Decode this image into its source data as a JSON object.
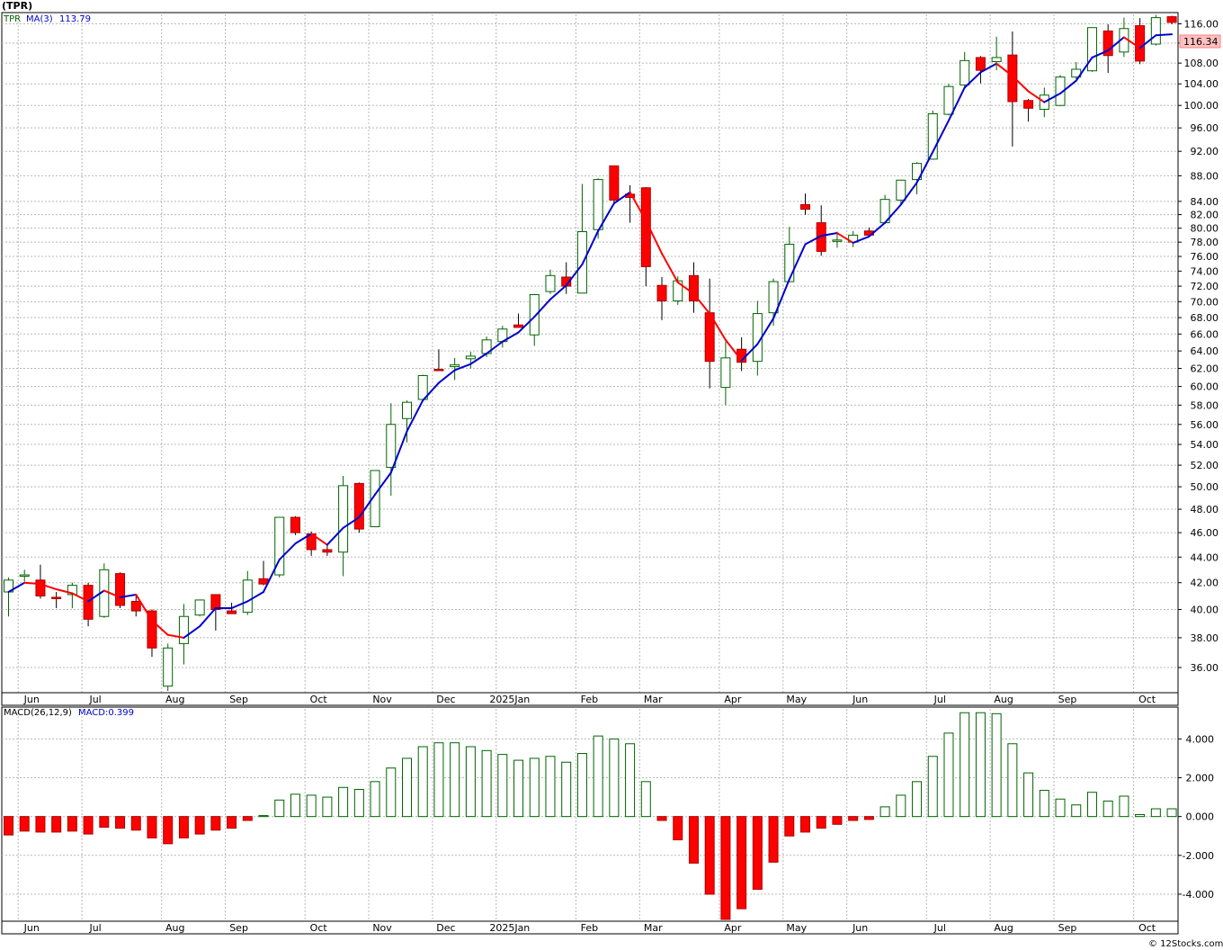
{
  "title": "(TPR)",
  "legend": {
    "symbol": "TPR",
    "ma_label": "MA(3)",
    "ma_value": "113.79",
    "macd_label": "MACD(26,12,9)",
    "macd_value_label": "MACD:0.399"
  },
  "last_price_label": "116.34",
  "copyright": "© 12Stocks.com",
  "colors": {
    "up": "#ffffff",
    "up_stroke": "#006400",
    "down": "#ff0000",
    "down_stroke": "#aa0000",
    "ma_up": "#0000cc",
    "ma_down": "#ff0000",
    "macd_pos": "#006400",
    "macd_neg": "#ff0000"
  },
  "chart_data": [
    {
      "type": "candlestick",
      "frequency": "weekly",
      "y_scale": "log",
      "ylim": [
        34.5,
        118
      ],
      "y_ticks": [
        36,
        38,
        40,
        42,
        44,
        46,
        48,
        50,
        52,
        54,
        56,
        58,
        60,
        62,
        64,
        66,
        68,
        70,
        72,
        74,
        76,
        78,
        80,
        82,
        84,
        88,
        92,
        96,
        100,
        104,
        108,
        112,
        116
      ],
      "y_tick_labels": [
        "36.00",
        "38.00",
        "40.00",
        "42.00",
        "44.00",
        "46.00",
        "48.00",
        "50.00",
        "52.00",
        "54.00",
        "56.00",
        "58.00",
        "60.00",
        "62.00",
        "64.00",
        "66.00",
        "68.00",
        "70.00",
        "72.00",
        "74.00",
        "76.00",
        "78.00",
        "80.00",
        "82.00",
        "84.00",
        "88.00",
        "92.00",
        "96.00",
        "100.00",
        "104.00",
        "108.00",
        "112.00",
        "116.00"
      ],
      "x_labels": [
        {
          "label": "Jun",
          "week": 1
        },
        {
          "label": "Jul",
          "week": 5
        },
        {
          "label": "Aug",
          "week": 10
        },
        {
          "label": "Sep",
          "week": 14
        },
        {
          "label": "Oct",
          "week": 19
        },
        {
          "label": "Nov",
          "week": 23
        },
        {
          "label": "Dec",
          "week": 27
        },
        {
          "label": "2025Jan",
          "week": 31
        },
        {
          "label": "Feb",
          "week": 36
        },
        {
          "label": "Mar",
          "week": 40
        },
        {
          "label": "Apr",
          "week": 45
        },
        {
          "label": "May",
          "week": 49
        },
        {
          "label": "Jun",
          "week": 53
        },
        {
          "label": "Jul",
          "week": 58
        },
        {
          "label": "Aug",
          "week": 62
        },
        {
          "label": "Sep",
          "week": 66
        },
        {
          "label": "Oct",
          "week": 71
        }
      ],
      "candles": [
        {
          "o": 41.3,
          "h": 42.4,
          "l": 39.5,
          "c": 42.2
        },
        {
          "o": 42.5,
          "h": 43.0,
          "l": 42.1,
          "c": 42.6
        },
        {
          "o": 42.2,
          "h": 43.4,
          "l": 40.8,
          "c": 41.0
        },
        {
          "o": 40.9,
          "h": 41.3,
          "l": 40.1,
          "c": 40.8
        },
        {
          "o": 41.1,
          "h": 42.0,
          "l": 40.1,
          "c": 41.8
        },
        {
          "o": 41.8,
          "h": 42.0,
          "l": 38.8,
          "c": 39.3
        },
        {
          "o": 39.5,
          "h": 43.5,
          "l": 39.4,
          "c": 43.0
        },
        {
          "o": 42.7,
          "h": 42.8,
          "l": 40.1,
          "c": 40.3
        },
        {
          "o": 40.6,
          "h": 41.0,
          "l": 39.5,
          "c": 39.9
        },
        {
          "o": 39.9,
          "h": 40.0,
          "l": 36.7,
          "c": 37.3
        },
        {
          "o": 34.8,
          "h": 37.6,
          "l": 34.5,
          "c": 37.3
        },
        {
          "o": 37.6,
          "h": 40.4,
          "l": 36.2,
          "c": 39.5
        },
        {
          "o": 39.6,
          "h": 40.7,
          "l": 39.5,
          "c": 40.7
        },
        {
          "o": 41.1,
          "h": 41.1,
          "l": 38.5,
          "c": 40.0
        },
        {
          "o": 39.9,
          "h": 40.5,
          "l": 39.7,
          "c": 39.7
        },
        {
          "o": 39.8,
          "h": 42.9,
          "l": 39.6,
          "c": 42.2
        },
        {
          "o": 42.3,
          "h": 43.7,
          "l": 41.8,
          "c": 41.9
        },
        {
          "o": 42.6,
          "h": 47.3,
          "l": 42.4,
          "c": 47.3
        },
        {
          "o": 47.3,
          "h": 47.4,
          "l": 45.8,
          "c": 46.0
        },
        {
          "o": 45.9,
          "h": 46.1,
          "l": 44.1,
          "c": 44.6
        },
        {
          "o": 44.6,
          "h": 45.0,
          "l": 44.1,
          "c": 44.4
        },
        {
          "o": 44.4,
          "h": 51.0,
          "l": 42.5,
          "c": 50.1
        },
        {
          "o": 50.3,
          "h": 50.4,
          "l": 46.0,
          "c": 46.3
        },
        {
          "o": 46.5,
          "h": 51.5,
          "l": 46.5,
          "c": 51.5
        },
        {
          "o": 51.8,
          "h": 58.2,
          "l": 49.2,
          "c": 56.0
        },
        {
          "o": 56.6,
          "h": 58.5,
          "l": 54.2,
          "c": 58.3
        },
        {
          "o": 58.6,
          "h": 61.3,
          "l": 58.4,
          "c": 61.2
        },
        {
          "o": 61.9,
          "h": 64.2,
          "l": 61.7,
          "c": 61.8
        },
        {
          "o": 62.2,
          "h": 63.2,
          "l": 60.7,
          "c": 62.4
        },
        {
          "o": 63.1,
          "h": 63.9,
          "l": 62.0,
          "c": 63.4
        },
        {
          "o": 63.7,
          "h": 65.7,
          "l": 63.3,
          "c": 65.3
        },
        {
          "o": 65.1,
          "h": 67.0,
          "l": 64.4,
          "c": 66.6
        },
        {
          "o": 67.1,
          "h": 68.5,
          "l": 66.9,
          "c": 66.8
        },
        {
          "o": 65.9,
          "h": 71.0,
          "l": 64.6,
          "c": 70.9
        },
        {
          "o": 71.3,
          "h": 74.2,
          "l": 71.0,
          "c": 73.4
        },
        {
          "o": 73.2,
          "h": 75.2,
          "l": 71.0,
          "c": 72.0
        },
        {
          "o": 71.1,
          "h": 86.7,
          "l": 71.1,
          "c": 79.5
        },
        {
          "o": 79.8,
          "h": 87.6,
          "l": 78.5,
          "c": 87.4
        },
        {
          "o": 89.6,
          "h": 89.6,
          "l": 83.8,
          "c": 84.2
        },
        {
          "o": 85.1,
          "h": 86.5,
          "l": 80.8,
          "c": 84.6
        },
        {
          "o": 86.1,
          "h": 86.2,
          "l": 72.0,
          "c": 74.6
        },
        {
          "o": 72.1,
          "h": 73.2,
          "l": 67.7,
          "c": 70.1
        },
        {
          "o": 70.1,
          "h": 73.3,
          "l": 69.6,
          "c": 72.7
        },
        {
          "o": 73.4,
          "h": 75.2,
          "l": 68.6,
          "c": 70.1
        },
        {
          "o": 68.6,
          "h": 73.0,
          "l": 59.8,
          "c": 62.8
        },
        {
          "o": 59.9,
          "h": 65.1,
          "l": 58.0,
          "c": 63.2
        },
        {
          "o": 64.2,
          "h": 65.6,
          "l": 61.7,
          "c": 62.7
        },
        {
          "o": 62.8,
          "h": 70.1,
          "l": 61.2,
          "c": 68.5
        },
        {
          "o": 68.6,
          "h": 73.0,
          "l": 67.0,
          "c": 72.6
        },
        {
          "o": 72.6,
          "h": 80.2,
          "l": 72.5,
          "c": 77.7
        },
        {
          "o": 83.5,
          "h": 85.2,
          "l": 82.0,
          "c": 82.8
        },
        {
          "o": 80.8,
          "h": 83.4,
          "l": 76.1,
          "c": 76.7
        },
        {
          "o": 78.2,
          "h": 79.5,
          "l": 77.2,
          "c": 78.3
        },
        {
          "o": 78.0,
          "h": 79.6,
          "l": 77.3,
          "c": 79.0
        },
        {
          "o": 79.6,
          "h": 80.1,
          "l": 78.9,
          "c": 79.0
        },
        {
          "o": 80.8,
          "h": 85.0,
          "l": 80.6,
          "c": 84.3
        },
        {
          "o": 84.2,
          "h": 87.4,
          "l": 83.5,
          "c": 87.3
        },
        {
          "o": 87.4,
          "h": 90.2,
          "l": 85.1,
          "c": 90.0
        },
        {
          "o": 90.7,
          "h": 99.1,
          "l": 90.6,
          "c": 98.5
        },
        {
          "o": 98.4,
          "h": 104.0,
          "l": 98.2,
          "c": 103.5
        },
        {
          "o": 103.8,
          "h": 110.2,
          "l": 103.4,
          "c": 108.5
        },
        {
          "o": 109.1,
          "h": 109.4,
          "l": 104.1,
          "c": 106.6
        },
        {
          "o": 108.3,
          "h": 113.3,
          "l": 106.6,
          "c": 109.1
        },
        {
          "o": 109.6,
          "h": 114.4,
          "l": 92.8,
          "c": 100.7
        },
        {
          "o": 100.9,
          "h": 101.2,
          "l": 97.1,
          "c": 99.5
        },
        {
          "o": 99.3,
          "h": 103.3,
          "l": 97.9,
          "c": 101.9
        },
        {
          "o": 100.0,
          "h": 105.7,
          "l": 99.9,
          "c": 105.3
        },
        {
          "o": 105.3,
          "h": 108.2,
          "l": 104.9,
          "c": 106.8
        },
        {
          "o": 106.5,
          "h": 115.2,
          "l": 106.3,
          "c": 115.2
        },
        {
          "o": 114.5,
          "h": 115.9,
          "l": 106.1,
          "c": 109.5
        },
        {
          "o": 110.2,
          "h": 117.3,
          "l": 109.2,
          "c": 115.0
        },
        {
          "o": 115.6,
          "h": 117.2,
          "l": 107.8,
          "c": 108.4
        },
        {
          "o": 111.8,
          "h": 117.9,
          "l": 111.5,
          "c": 117.3
        },
        {
          "o": 117.5,
          "h": 117.7,
          "l": 115.9,
          "c": 116.3
        }
      ],
      "ma3": [
        41.3,
        42.0,
        41.9,
        41.5,
        41.2,
        40.6,
        41.4,
        40.9,
        41.1,
        39.2,
        38.2,
        38.0,
        38.8,
        40.1,
        40.1,
        40.6,
        41.3,
        43.8,
        45.1,
        45.9,
        45.0,
        46.4,
        47.3,
        49.3,
        51.3,
        55.3,
        58.5,
        60.4,
        61.8,
        62.5,
        63.7,
        65.1,
        66.2,
        68.1,
        70.3,
        72.1,
        74.9,
        79.6,
        83.7,
        85.4,
        81.1,
        76.4,
        72.5,
        71.0,
        68.5,
        65.3,
        62.9,
        64.8,
        67.9,
        72.9,
        77.7,
        78.9,
        79.3,
        77.9,
        78.8,
        80.8,
        83.5,
        86.9,
        91.9,
        97.3,
        103.3,
        106.2,
        107.9,
        105.5,
        102.6,
        100.6,
        102.2,
        104.6,
        109.1,
        110.5,
        113.2,
        111.0,
        113.6,
        113.8
      ]
    },
    {
      "type": "bar",
      "name": "MACD(26,12,9)",
      "ylim": [
        -5.3,
        5.5
      ],
      "y_ticks": [
        -4,
        -2,
        0,
        2,
        4
      ],
      "y_tick_labels": [
        "-4.000",
        "-2.000",
        "0.000",
        "2.000",
        "4.000"
      ],
      "values": [
        -0.95,
        -0.75,
        -0.8,
        -0.8,
        -0.75,
        -0.9,
        -0.55,
        -0.6,
        -0.7,
        -1.1,
        -1.4,
        -1.1,
        -0.9,
        -0.7,
        -0.6,
        -0.2,
        0.05,
        0.85,
        1.15,
        1.1,
        1.0,
        1.5,
        1.4,
        1.8,
        2.5,
        3.0,
        3.6,
        3.8,
        3.8,
        3.6,
        3.4,
        3.2,
        2.9,
        3.0,
        3.1,
        2.8,
        3.25,
        4.15,
        4.0,
        3.75,
        1.8,
        -0.2,
        -1.2,
        -2.4,
        -4.0,
        -5.3,
        -4.75,
        -3.75,
        -2.35,
        -1.0,
        -0.8,
        -0.6,
        -0.4,
        -0.2,
        -0.15,
        0.5,
        1.1,
        1.8,
        3.1,
        4.3,
        5.35,
        5.35,
        5.3,
        3.75,
        2.25,
        1.35,
        0.9,
        0.6,
        1.25,
        0.8,
        1.05,
        0.1,
        0.4,
        0.4
      ]
    }
  ]
}
